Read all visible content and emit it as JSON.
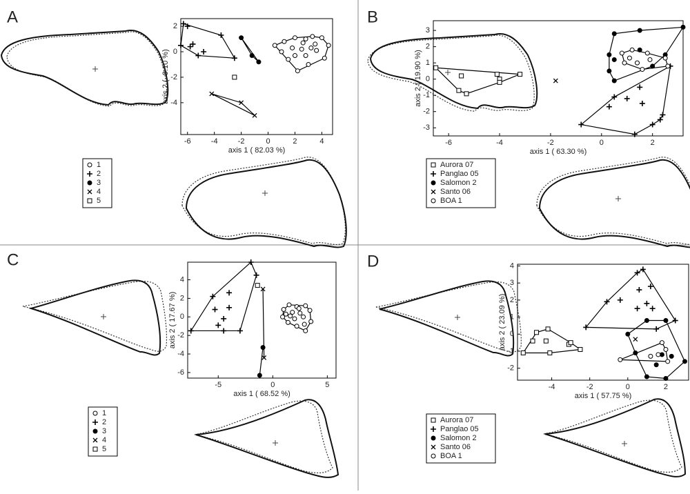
{
  "chart_data": [
    {
      "type": "scatter",
      "panel": "A",
      "xlabel": "axis 1 ( 82.03 %)",
      "ylabel": "axis 2 (  9.10 %)",
      "xlim": [
        -6.5,
        4.8
      ],
      "ylim": [
        -6.5,
        2.6
      ],
      "xticks": [
        -6,
        -4,
        -2,
        0,
        2,
        4
      ],
      "yticks": [
        -4,
        -2,
        0,
        2
      ],
      "series": [
        {
          "name": "1",
          "marker": "circle-open",
          "color": "#000",
          "x": [
            0.5,
            1.2,
            2,
            2.8,
            3.3,
            4,
            4.5,
            4.2,
            3,
            2.2,
            1.5,
            1,
            2.5,
            3.2,
            3.6,
            2.8,
            2,
            3.5,
            1.8,
            2.6
          ],
          "y": [
            0.5,
            0.8,
            1.1,
            1,
            1.2,
            1.1,
            0.5,
            -0.5,
            -1,
            -1.5,
            -0.6,
            0,
            0.2,
            0.3,
            0.1,
            -0.3,
            -0.3,
            0.6,
            0.3,
            0.7
          ]
        },
        {
          "name": "2",
          "marker": "plus",
          "color": "#000",
          "x": [
            -6.3,
            -6,
            -3.5,
            -2.5,
            -5.2,
            -6.5,
            -5.8,
            -4.8,
            -5.6
          ],
          "y": [
            2.2,
            2,
            1.3,
            -0.5,
            -0.3,
            0.5,
            0.4,
            0,
            0.6
          ]
        },
        {
          "name": "3",
          "marker": "circle-filled",
          "color": "#000",
          "x": [
            -2,
            -1.2,
            -0.7
          ],
          "y": [
            1.1,
            -0.3,
            -0.8
          ]
        },
        {
          "name": "4",
          "marker": "x",
          "color": "#000",
          "x": [
            -4.2,
            -2,
            -1
          ],
          "y": [
            -3.3,
            -4,
            -5
          ]
        },
        {
          "name": "5",
          "marker": "square-open",
          "color": "#000",
          "x": [
            -2.5
          ],
          "y": [
            -2
          ]
        }
      ]
    },
    {
      "type": "scatter",
      "panel": "B",
      "xlabel": "axis 1 ( 63.30 %)",
      "ylabel": "axis 2 ( 19.90 %)",
      "xlim": [
        -6.6,
        3.2
      ],
      "ylim": [
        -3.5,
        3.6
      ],
      "xticks": [
        -6,
        -4,
        -2,
        0,
        2
      ],
      "yticks": [
        -3,
        -2,
        -1,
        0,
        1,
        2,
        3
      ],
      "series": [
        {
          "name": "Aurora 07",
          "marker": "square-open",
          "color": "#000",
          "x": [
            -6.5,
            -5.5,
            -5.6,
            -5.3,
            -4.1,
            -4,
            -3.2,
            -4
          ],
          "y": [
            0.7,
            0.2,
            -0.7,
            -0.9,
            0.3,
            0,
            0.3,
            -0.2
          ]
        },
        {
          "name": "Panglao 05",
          "marker": "plus",
          "color": "#000",
          "x": [
            -0.8,
            1.3,
            2.4,
            2.7,
            1,
            0.5,
            1.5,
            2,
            2.3,
            0.3,
            1.6
          ],
          "y": [
            -2.8,
            -3.4,
            -2.2,
            0.8,
            -1.2,
            -1.1,
            -0.5,
            -2.8,
            -2.5,
            -1.7,
            -1.5
          ]
        },
        {
          "name": "Salomon 2",
          "marker": "circle-filled",
          "color": "#000",
          "x": [
            0.3,
            0.5,
            1.5,
            3.2,
            1.5,
            0.5,
            0.5,
            2.5,
            2,
            0.3
          ],
          "y": [
            0.5,
            2.8,
            3,
            3.2,
            1.8,
            1.2,
            -0.1,
            1.5,
            0.8,
            1.5
          ]
        },
        {
          "name": "Santo 06",
          "marker": "x",
          "color": "#000",
          "x": [
            -1.8
          ],
          "y": [
            -0.1
          ]
        },
        {
          "name": "BOA 1",
          "marker": "circle-open",
          "color": "#000",
          "x": [
            0.8,
            1.2,
            1.8,
            2.5,
            2.6,
            1.6,
            1.1,
            1.9,
            1.4,
            0.9
          ],
          "y": [
            1.6,
            1.8,
            1.6,
            1.3,
            0.8,
            0.6,
            1.3,
            1.2,
            1,
            1
          ]
        }
      ]
    },
    {
      "type": "scatter",
      "panel": "C",
      "xlabel": "axis 1 ( 68.52 %)",
      "ylabel": "axis 2 ( 17.67 %)",
      "xlim": [
        -7.8,
        5.8
      ],
      "ylim": [
        -6.6,
        5.9
      ],
      "xticks": [
        -5,
        0,
        5
      ],
      "yticks": [
        -6,
        -4,
        -2,
        0,
        2,
        4
      ],
      "series": [
        {
          "name": "1",
          "marker": "circle-open",
          "color": "#000",
          "x": [
            1,
            1.5,
            2.2,
            3,
            3.4,
            3.5,
            3,
            2.2,
            1.4,
            0.9,
            1.8,
            2.5,
            2.8,
            2,
            1.6,
            2.9,
            2.4,
            1.2
          ],
          "y": [
            0.8,
            1.3,
            1.1,
            1.2,
            0.7,
            -0.5,
            -1.5,
            -1,
            -0.6,
            0,
            0.5,
            0.4,
            0,
            -0.2,
            0.1,
            -0.8,
            0.9,
            0.3
          ]
        },
        {
          "name": "2",
          "marker": "plus",
          "color": "#000",
          "x": [
            -7.5,
            -5.5,
            -4,
            -3,
            -5,
            -4.5,
            -5.3,
            -4.5,
            -4,
            -2,
            -1.5
          ],
          "y": [
            -1.5,
            2.2,
            1,
            -1.5,
            -0.9,
            -0.2,
            0.8,
            -1.5,
            2.6,
            5.9,
            4.5
          ]
        },
        {
          "name": "3",
          "marker": "circle-filled",
          "color": "#000",
          "x": [
            -0.9,
            -1.2
          ],
          "y": [
            -3.3,
            -6.3
          ]
        },
        {
          "name": "4",
          "marker": "x",
          "color": "#000",
          "x": [
            -0.8,
            -0.9
          ],
          "y": [
            -4.4,
            3
          ]
        },
        {
          "name": "5",
          "marker": "square-open",
          "color": "#000",
          "x": [
            -1.4
          ],
          "y": [
            3.4
          ]
        }
      ]
    },
    {
      "type": "scatter",
      "panel": "D",
      "xlabel": "axis 1 ( 57.75 %)",
      "ylabel": "axis 2 ( 23.09 %)",
      "xlim": [
        -5.8,
        3.2
      ],
      "ylim": [
        -2.7,
        4.1
      ],
      "xticks": [
        -4,
        -2,
        0,
        2
      ],
      "yticks": [
        -2,
        -1,
        0,
        1,
        2,
        3,
        4
      ],
      "series": [
        {
          "name": "Aurora 07",
          "marker": "square-open",
          "color": "#000",
          "x": [
            -5.5,
            -5,
            -4.8,
            -4.2,
            -4.3,
            -3.1,
            -2.5,
            -4.1,
            -3
          ],
          "y": [
            -1.1,
            -0.4,
            0.1,
            0.3,
            -0.4,
            -0.6,
            -0.9,
            -1.1,
            -0.5
          ]
        },
        {
          "name": "Panglao 05",
          "marker": "plus",
          "color": "#000",
          "x": [
            -2.2,
            0.8,
            0.5,
            1.2,
            2.5,
            -1.1,
            -0.4,
            0.6,
            0.5,
            1.5,
            1,
            1.3
          ],
          "y": [
            0.4,
            3.8,
            3.6,
            2.8,
            0.8,
            1.9,
            2,
            2.6,
            1.5,
            0.3,
            1.8,
            1.5
          ]
        },
        {
          "name": "Salomon 2",
          "marker": "circle-filled",
          "color": "#000",
          "x": [
            0,
            1,
            2,
            3,
            2,
            1,
            0.4,
            1.5,
            1.8,
            2.3
          ],
          "y": [
            0,
            0.8,
            0.8,
            -1.6,
            -2.6,
            -2.5,
            -1.1,
            -1.8,
            -1.2,
            -1.3
          ]
        },
        {
          "name": "Santo 06",
          "marker": "x",
          "color": "#000",
          "x": [
            0.4
          ],
          "y": [
            -0.3
          ]
        },
        {
          "name": "BOA 1",
          "marker": "circle-open",
          "color": "#000",
          "x": [
            -0.4,
            1.2,
            1.8,
            2,
            1.6,
            2.1
          ],
          "y": [
            -1.5,
            -1.3,
            -0.5,
            -0.9,
            -1.2,
            -1.6
          ]
        }
      ]
    }
  ]
}
